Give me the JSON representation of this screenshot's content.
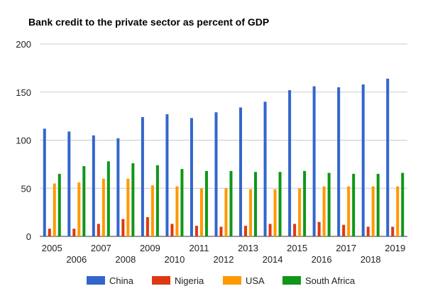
{
  "chart_data": {
    "type": "bar",
    "title": "Bank credit to the private sector as percent of GDP",
    "xlabel": "",
    "ylabel": "",
    "ylim": [
      0,
      200
    ],
    "yticks": [
      0,
      50,
      100,
      150,
      200
    ],
    "grid": true,
    "legend_position": "bottom",
    "categories": [
      "2005",
      "2006",
      "2007",
      "2008",
      "2009",
      "2010",
      "2011",
      "2012",
      "2013",
      "2014",
      "2015",
      "2016",
      "2017",
      "2018",
      "2019"
    ],
    "series": [
      {
        "name": "China",
        "color": "#3366cc",
        "values": [
          112,
          109,
          105,
          102,
          124,
          127,
          123,
          129,
          134,
          140,
          152,
          156,
          155,
          158,
          164
        ]
      },
      {
        "name": "Nigeria",
        "color": "#dc3912",
        "values": [
          8,
          8,
          13,
          18,
          20,
          13,
          11,
          10,
          11,
          13,
          13,
          15,
          12,
          10,
          10
        ]
      },
      {
        "name": "USA",
        "color": "#ff9900",
        "values": [
          55,
          56,
          60,
          60,
          53,
          52,
          50,
          50,
          49,
          49,
          50,
          52,
          52,
          52,
          52
        ]
      },
      {
        "name": "South Africa",
        "color": "#109618",
        "values": [
          65,
          73,
          78,
          76,
          74,
          70,
          68,
          68,
          67,
          67,
          68,
          66,
          65,
          65,
          66
        ]
      }
    ]
  }
}
